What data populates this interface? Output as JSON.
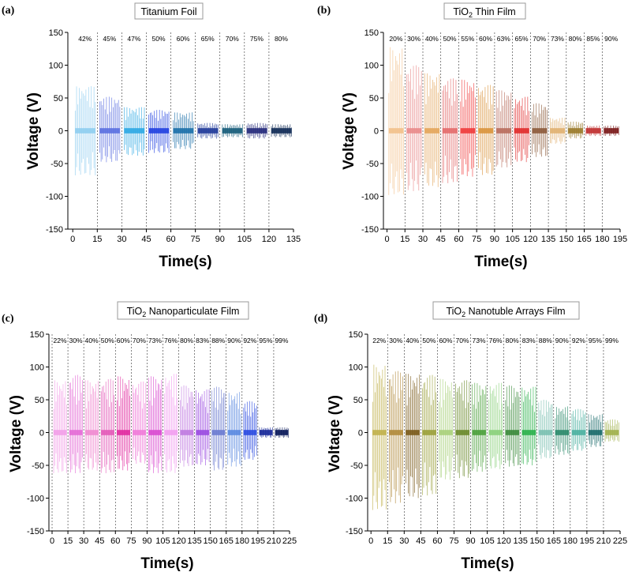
{
  "chart_data": [
    {
      "type": "line",
      "panel_label": "(a)",
      "title": "Titanium Foil",
      "xlabel": "Time(s)",
      "ylabel": "Voltage (V)",
      "xlim": [
        -3,
        135
      ],
      "ylim": [
        -150,
        150
      ],
      "xticks": [
        0,
        15,
        30,
        45,
        60,
        75,
        90,
        105,
        120,
        135
      ],
      "yticks": [
        -150,
        -100,
        -50,
        0,
        50,
        100,
        150
      ],
      "dividers": [
        15,
        30,
        45,
        60,
        75,
        90,
        105,
        120
      ],
      "segments": [
        {
          "label": "42%",
          "start": 0,
          "end": 15,
          "max": 68,
          "min": -68,
          "color": "#8ecdf0"
        },
        {
          "label": "45%",
          "start": 15,
          "end": 30,
          "max": 52,
          "min": -48,
          "color": "#5a6fe0"
        },
        {
          "label": "47%",
          "start": 30,
          "end": 45,
          "max": 36,
          "min": -38,
          "color": "#2ba7e3"
        },
        {
          "label": "50%",
          "start": 45,
          "end": 60,
          "max": 32,
          "min": -34,
          "color": "#1f3fe0"
        },
        {
          "label": "60%",
          "start": 60,
          "end": 75,
          "max": 28,
          "min": -28,
          "color": "#1a6fa8"
        },
        {
          "label": "65%",
          "start": 75,
          "end": 90,
          "max": 12,
          "min": -12,
          "color": "#1f3a99"
        },
        {
          "label": "70%",
          "start": 90,
          "end": 105,
          "max": 10,
          "min": -10,
          "color": "#165c7a"
        },
        {
          "label": "75%",
          "start": 105,
          "end": 120,
          "max": 12,
          "min": -12,
          "color": "#24297a"
        },
        {
          "label": "80%",
          "start": 120,
          "end": 135,
          "max": 10,
          "min": -10,
          "color": "#0f2a55"
        }
      ]
    },
    {
      "type": "line",
      "panel_label": "(b)",
      "title": "TiO2 Thin Film",
      "title_parts": [
        "TiO",
        "2",
        " Thin Film"
      ],
      "xlabel": "Time(s)",
      "ylabel": "Voltage (V)",
      "xlim": [
        -3,
        195
      ],
      "ylim": [
        -150,
        150
      ],
      "xticks": [
        0,
        15,
        30,
        45,
        60,
        75,
        90,
        105,
        120,
        135,
        150,
        165,
        180,
        195
      ],
      "yticks": [
        -150,
        -100,
        -50,
        0,
        50,
        100,
        150
      ],
      "dividers": [
        15,
        30,
        45,
        60,
        75,
        90,
        105,
        120,
        135,
        150,
        165,
        180
      ],
      "segments": [
        {
          "label": "20%",
          "start": 0,
          "end": 15,
          "max": 128,
          "min": -98,
          "color": "#f2c08a"
        },
        {
          "label": "30%",
          "start": 15,
          "end": 30,
          "max": 100,
          "min": -92,
          "color": "#e98a8a"
        },
        {
          "label": "40%",
          "start": 30,
          "end": 45,
          "max": 88,
          "min": -86,
          "color": "#e3a55a"
        },
        {
          "label": "50%",
          "start": 45,
          "end": 60,
          "max": 80,
          "min": -80,
          "color": "#e36a6a"
        },
        {
          "label": "55%",
          "start": 60,
          "end": 75,
          "max": 78,
          "min": -70,
          "color": "#f03a3a"
        },
        {
          "label": "60%",
          "start": 75,
          "end": 90,
          "max": 70,
          "min": -68,
          "color": "#d9933b"
        },
        {
          "label": "63%",
          "start": 90,
          "end": 105,
          "max": 62,
          "min": -56,
          "color": "#b86c5c"
        },
        {
          "label": "65%",
          "start": 105,
          "end": 120,
          "max": 52,
          "min": -48,
          "color": "#e02a2a"
        },
        {
          "label": "70%",
          "start": 120,
          "end": 135,
          "max": 42,
          "min": -40,
          "color": "#8c5a3a"
        },
        {
          "label": "73%",
          "start": 135,
          "end": 150,
          "max": 20,
          "min": -20,
          "color": "#e0b070"
        },
        {
          "label": "80%",
          "start": 150,
          "end": 165,
          "max": 14,
          "min": -12,
          "color": "#9a7a2a"
        },
        {
          "label": "85%",
          "start": 165,
          "end": 180,
          "max": 8,
          "min": -8,
          "color": "#c03030"
        },
        {
          "label": "90%",
          "start": 180,
          "end": 195,
          "max": 8,
          "min": -8,
          "color": "#7a1a1a"
        }
      ]
    },
    {
      "type": "line",
      "panel_label": "(c)",
      "title": "TiO2 Nanoparticulate Film",
      "title_parts": [
        "TiO",
        "2",
        " Nanoparticulate Film"
      ],
      "xlabel": "Time(s)",
      "ylabel": "Voltage (V)",
      "xlim": [
        -3,
        225
      ],
      "ylim": [
        -150,
        150
      ],
      "xticks": [
        0,
        15,
        30,
        45,
        60,
        75,
        90,
        105,
        120,
        135,
        150,
        165,
        180,
        195,
        210,
        225
      ],
      "yticks": [
        -150,
        -100,
        -50,
        0,
        50,
        100,
        150
      ],
      "dividers": [
        0,
        15,
        30,
        45,
        60,
        75,
        90,
        105,
        120,
        135,
        150,
        165,
        180,
        195,
        210
      ],
      "segments": [
        {
          "label": "22%",
          "start": 0,
          "end": 15,
          "max": 80,
          "min": -62,
          "color": "#f29ee8"
        },
        {
          "label": "30%",
          "start": 15,
          "end": 30,
          "max": 88,
          "min": -62,
          "color": "#e46ad6"
        },
        {
          "label": "40%",
          "start": 30,
          "end": 45,
          "max": 80,
          "min": -58,
          "color": "#f08ad0"
        },
        {
          "label": "50%",
          "start": 45,
          "end": 60,
          "max": 82,
          "min": -62,
          "color": "#e35ab8"
        },
        {
          "label": "60%",
          "start": 60,
          "end": 75,
          "max": 86,
          "min": -58,
          "color": "#e02aa0"
        },
        {
          "label": "70%",
          "start": 75,
          "end": 90,
          "max": 78,
          "min": -48,
          "color": "#f07ad8"
        },
        {
          "label": "73%",
          "start": 90,
          "end": 105,
          "max": 86,
          "min": -62,
          "color": "#d94ad0"
        },
        {
          "label": "76%",
          "start": 105,
          "end": 120,
          "max": 90,
          "min": -62,
          "color": "#f29ef0"
        },
        {
          "label": "80%",
          "start": 120,
          "end": 135,
          "max": 72,
          "min": -52,
          "color": "#c07ae0"
        },
        {
          "label": "83%",
          "start": 135,
          "end": 150,
          "max": 66,
          "min": -50,
          "color": "#9a4ae0"
        },
        {
          "label": "88%",
          "start": 150,
          "end": 165,
          "max": 70,
          "min": -58,
          "color": "#6a7ad0"
        },
        {
          "label": "90%",
          "start": 165,
          "end": 180,
          "max": 62,
          "min": -52,
          "color": "#5a8ae0"
        },
        {
          "label": "92%",
          "start": 180,
          "end": 195,
          "max": 48,
          "min": -42,
          "color": "#2a4ae0"
        },
        {
          "label": "95%",
          "start": 195,
          "end": 210,
          "max": 8,
          "min": -8,
          "color": "#1a2a9a"
        },
        {
          "label": "99%",
          "start": 210,
          "end": 225,
          "max": 8,
          "min": -8,
          "color": "#0a1a5a"
        }
      ]
    },
    {
      "type": "line",
      "panel_label": "(d)",
      "title": "TiO2 Nanotuble Arrays Film",
      "title_parts": [
        "TiO",
        "2",
        " Nanotuble Arrays Film"
      ],
      "xlabel": "Time(s)",
      "ylabel": "Voltage (V)",
      "xlim": [
        -3,
        225
      ],
      "ylim": [
        -150,
        150
      ],
      "xticks": [
        0,
        15,
        30,
        45,
        60,
        75,
        90,
        105,
        120,
        135,
        150,
        165,
        180,
        195,
        210,
        225
      ],
      "yticks": [
        -150,
        -100,
        -50,
        0,
        50,
        100,
        150
      ],
      "dividers": [
        15,
        30,
        45,
        60,
        75,
        90,
        105,
        120,
        135,
        150,
        165,
        180,
        195,
        210
      ],
      "segments": [
        {
          "label": "22%",
          "start": 0,
          "end": 15,
          "max": 104,
          "min": -118,
          "color": "#c0b04a"
        },
        {
          "label": "30%",
          "start": 15,
          "end": 30,
          "max": 94,
          "min": -108,
          "color": "#b08a3a"
        },
        {
          "label": "40%",
          "start": 30,
          "end": 45,
          "max": 90,
          "min": -100,
          "color": "#7a5a1a"
        },
        {
          "label": "50%",
          "start": 45,
          "end": 60,
          "max": 88,
          "min": -96,
          "color": "#9aa03a"
        },
        {
          "label": "60%",
          "start": 60,
          "end": 75,
          "max": 82,
          "min": -72,
          "color": "#a8d07a"
        },
        {
          "label": "70%",
          "start": 75,
          "end": 90,
          "max": 80,
          "min": -70,
          "color": "#6a8a2a"
        },
        {
          "label": "73%",
          "start": 90,
          "end": 105,
          "max": 76,
          "min": -60,
          "color": "#4aa03a"
        },
        {
          "label": "76%",
          "start": 105,
          "end": 120,
          "max": 76,
          "min": -56,
          "color": "#8ad07a"
        },
        {
          "label": "80%",
          "start": 120,
          "end": 135,
          "max": 72,
          "min": -52,
          "color": "#3a8a3a"
        },
        {
          "label": "83%",
          "start": 135,
          "end": 150,
          "max": 70,
          "min": -50,
          "color": "#2ab04a"
        },
        {
          "label": "88%",
          "start": 150,
          "end": 165,
          "max": 50,
          "min": -40,
          "color": "#7ac0b0"
        },
        {
          "label": "90%",
          "start": 165,
          "end": 180,
          "max": 40,
          "min": -34,
          "color": "#2a8a6a"
        },
        {
          "label": "92%",
          "start": 180,
          "end": 195,
          "max": 36,
          "min": -28,
          "color": "#4ab0a0"
        },
        {
          "label": "95%",
          "start": 195,
          "end": 210,
          "max": 28,
          "min": -22,
          "color": "#1a6a6a"
        },
        {
          "label": "99%",
          "start": 210,
          "end": 225,
          "max": 20,
          "min": -14,
          "color": "#a0b04a"
        }
      ]
    }
  ]
}
